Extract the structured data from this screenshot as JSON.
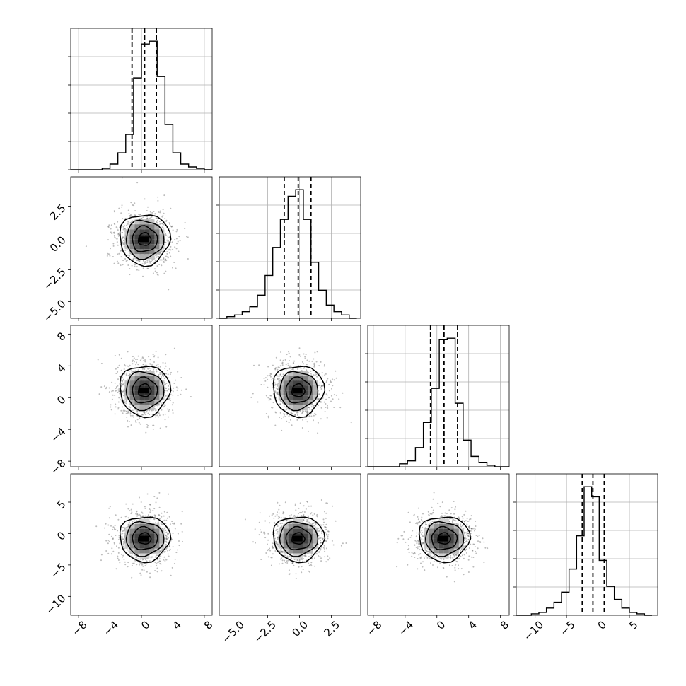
{
  "chart_data": {
    "type": "corner",
    "parameters": [
      {
        "range": [
          -9,
          9
        ],
        "ticks": [
          -8,
          -4,
          0,
          4,
          8
        ],
        "tick_labels": [
          "−8",
          "−4",
          "0",
          "4",
          "8"
        ],
        "mean": 0.4,
        "sd": 1.6,
        "quantiles": [
          -1.2,
          0.4,
          1.9
        ]
      },
      {
        "range": [
          -6.3,
          4.8
        ],
        "ticks": [
          -5.0,
          -2.5,
          0.0,
          2.5
        ],
        "tick_labels": [
          "−5.0",
          "−2.5",
          "0.0",
          "2.5"
        ],
        "mean": -0.1,
        "sd": 1.0,
        "quantiles": [
          -1.2,
          -0.1,
          0.9
        ]
      },
      {
        "range": [
          -8.7,
          9.1
        ],
        "ticks": [
          -8,
          -4,
          0,
          4,
          8
        ],
        "tick_labels": [
          "−8",
          "−4",
          "0",
          "4",
          "8"
        ],
        "mean": 0.9,
        "sd": 1.6,
        "quantiles": [
          -0.8,
          0.9,
          2.6
        ]
      },
      {
        "range": [
          -13.0,
          9.5
        ],
        "ticks": [
          -10,
          -5,
          0,
          5
        ],
        "tick_labels": [
          "−10",
          "−5",
          "0",
          "5"
        ],
        "mean": -0.8,
        "sd": 1.8,
        "quantiles": [
          -2.5,
          -0.8,
          1.0
        ]
      }
    ],
    "histograms": [
      {
        "parameter": 0,
        "bin_edges": [
          -9,
          -8,
          -7,
          -6,
          -5,
          -4,
          -3,
          -2,
          -1,
          0,
          1,
          2,
          3,
          4,
          5,
          6,
          7,
          8,
          9
        ],
        "counts": [
          0.0,
          0.0,
          0.0,
          0.0,
          0.01,
          0.04,
          0.12,
          0.25,
          0.65,
          0.89,
          0.91,
          0.66,
          0.32,
          0.12,
          0.04,
          0.02,
          0.01,
          0.0
        ]
      },
      {
        "parameter": 1,
        "bin_edges": [
          -6.3,
          -5.7,
          -5.1,
          -4.5,
          -3.9,
          -3.3,
          -2.7,
          -2.1,
          -1.5,
          -0.9,
          -0.3,
          0.3,
          0.9,
          1.5,
          2.1,
          2.7,
          3.3,
          3.9,
          4.5
        ],
        "counts": [
          0.0,
          0.01,
          0.02,
          0.04,
          0.07,
          0.14,
          0.26,
          0.43,
          0.6,
          0.74,
          0.78,
          0.6,
          0.34,
          0.17,
          0.08,
          0.04,
          0.02,
          0.0
        ]
      },
      {
        "parameter": 2,
        "bin_edges": [
          -8.7,
          -7.7,
          -6.7,
          -5.7,
          -4.7,
          -3.7,
          -2.7,
          -1.7,
          -0.7,
          0.3,
          1.3,
          2.3,
          3.3,
          4.3,
          5.3,
          6.3,
          7.3,
          8.3,
          9.1
        ],
        "counts": [
          0.0,
          0.0,
          0.0,
          0.0,
          0.02,
          0.04,
          0.13,
          0.3,
          0.53,
          0.86,
          0.87,
          0.43,
          0.18,
          0.07,
          0.03,
          0.01,
          0.0,
          0.0
        ]
      },
      {
        "parameter": 3,
        "bin_edges": [
          -13.0,
          -11.8,
          -10.6,
          -9.4,
          -8.2,
          -7.0,
          -5.8,
          -4.6,
          -3.4,
          -2.2,
          -1.0,
          0.2,
          1.4,
          2.6,
          3.8,
          5.0,
          6.2,
          7.4,
          8.6
        ],
        "counts": [
          0.0,
          0.0,
          0.01,
          0.02,
          0.05,
          0.09,
          0.16,
          0.32,
          0.55,
          0.89,
          0.82,
          0.38,
          0.2,
          0.11,
          0.05,
          0.02,
          0.01,
          0.0
        ]
      }
    ],
    "pairs": [
      {
        "x": 0,
        "y": 1,
        "center": [
          0.4,
          -0.1
        ],
        "spread": [
          1.6,
          1.0
        ]
      },
      {
        "x": 0,
        "y": 2,
        "center": [
          0.4,
          0.9
        ],
        "spread": [
          1.6,
          1.6
        ]
      },
      {
        "x": 1,
        "y": 2,
        "center": [
          -0.1,
          0.9
        ],
        "spread": [
          1.0,
          1.6
        ]
      },
      {
        "x": 0,
        "y": 3,
        "center": [
          0.4,
          -0.8
        ],
        "spread": [
          1.6,
          1.8
        ]
      },
      {
        "x": 1,
        "y": 3,
        "center": [
          -0.1,
          -0.8
        ],
        "spread": [
          1.0,
          1.8
        ]
      },
      {
        "x": 2,
        "y": 3,
        "center": [
          0.9,
          -0.8
        ],
        "spread": [
          1.6,
          1.8
        ]
      }
    ],
    "contour_levels_sigma": [
      0.5,
      1.0,
      1.5,
      2.0
    ],
    "grid": true,
    "quantile_line_style": "dashed"
  }
}
